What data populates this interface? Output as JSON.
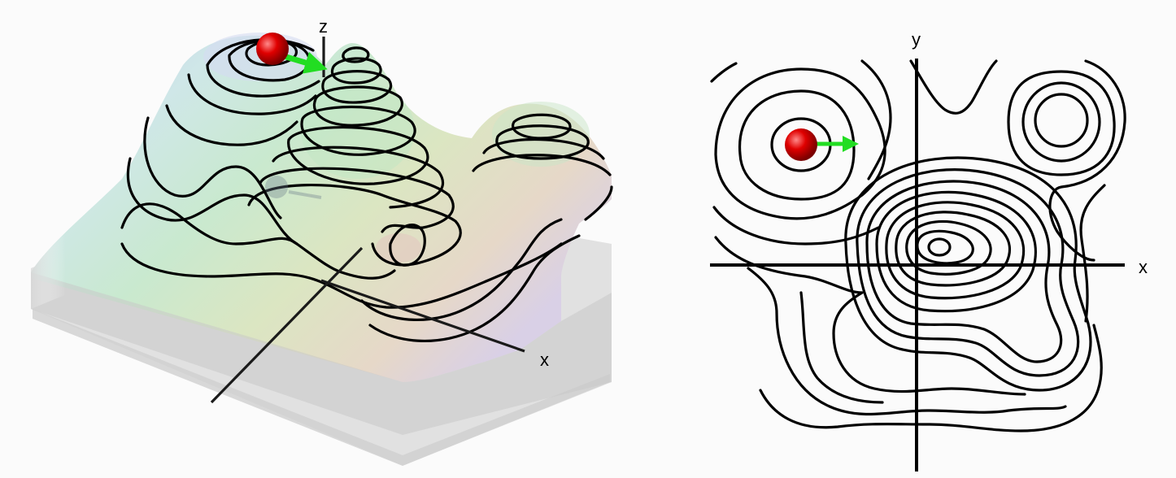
{
  "panel_3d": {
    "axis_x_label": "x",
    "axis_z_label": "z"
  },
  "panel_2d": {
    "axis_x_label": "x",
    "axis_y_label": "y"
  },
  "colors": {
    "ball": "#e00000",
    "arrow": "#22dd22",
    "contour": "#000000",
    "shadow_plane": "#d9d9d9"
  }
}
